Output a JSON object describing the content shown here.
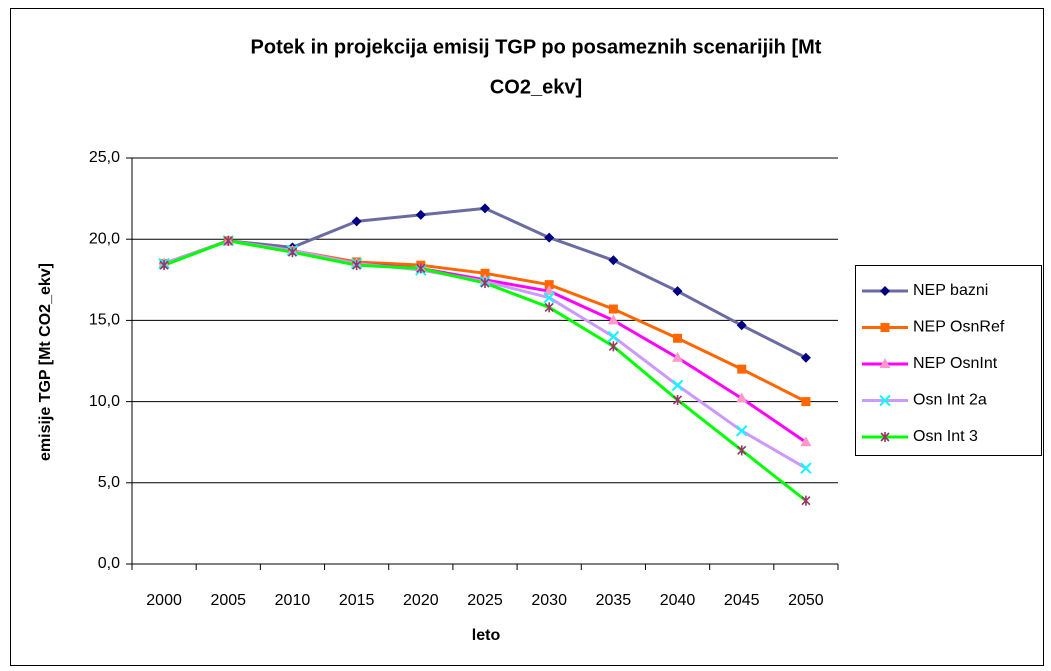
{
  "chart_data": {
    "type": "line",
    "title": [
      "Potek in projekcija emisij TGP po posameznih scenarijih [Mt",
      "CO2_ekv]"
    ],
    "xlabel": "leto",
    "ylabel": "emisije TGP [Mt CO2_ekv]",
    "categories": [
      "2000",
      "2005",
      "2010",
      "2015",
      "2020",
      "2025",
      "2030",
      "2035",
      "2040",
      "2045",
      "2050"
    ],
    "ylim": [
      0,
      25
    ],
    "yticks": [
      {
        "value": 0,
        "label": "0,0"
      },
      {
        "value": 5,
        "label": "5,0"
      },
      {
        "value": 10,
        "label": "10,0"
      },
      {
        "value": 15,
        "label": "15,0"
      },
      {
        "value": 20,
        "label": "20,0"
      },
      {
        "value": 25,
        "label": "25,0"
      }
    ],
    "grid": true,
    "legend": "right",
    "series": [
      {
        "name": "NEP bazni",
        "color": "#6b6ba3",
        "marker_color": "#000080",
        "marker": "diamond",
        "values": [
          18.5,
          19.9,
          19.5,
          21.1,
          21.5,
          21.9,
          20.1,
          18.7,
          16.8,
          14.7,
          12.7
        ]
      },
      {
        "name": "NEP OsnRef",
        "color": "#ff6600",
        "marker_color": "#ff6600",
        "marker": "square",
        "values": [
          18.5,
          19.9,
          19.3,
          18.6,
          18.4,
          17.9,
          17.2,
          15.7,
          13.9,
          12.0,
          10.0
        ]
      },
      {
        "name": "NEP OsnInt",
        "color": "#ff00ff",
        "marker_color": "#ff99cc",
        "marker": "triangle",
        "values": [
          18.5,
          19.9,
          19.3,
          18.5,
          18.2,
          17.5,
          16.8,
          15.0,
          12.7,
          10.2,
          7.5
        ]
      },
      {
        "name": "Osn Int 2a",
        "color": "#cc99ff",
        "marker_color": "#00ffff",
        "marker": "x",
        "values": [
          18.5,
          19.9,
          19.3,
          18.5,
          18.1,
          17.4,
          16.4,
          14.0,
          11.0,
          8.2,
          5.9
        ]
      },
      {
        "name": "Osn Int 3",
        "color": "#00ff00",
        "marker_color": "#993366",
        "marker": "star",
        "values": [
          18.4,
          19.9,
          19.2,
          18.4,
          18.2,
          17.3,
          15.8,
          13.4,
          10.1,
          7.0,
          3.9
        ]
      }
    ]
  }
}
